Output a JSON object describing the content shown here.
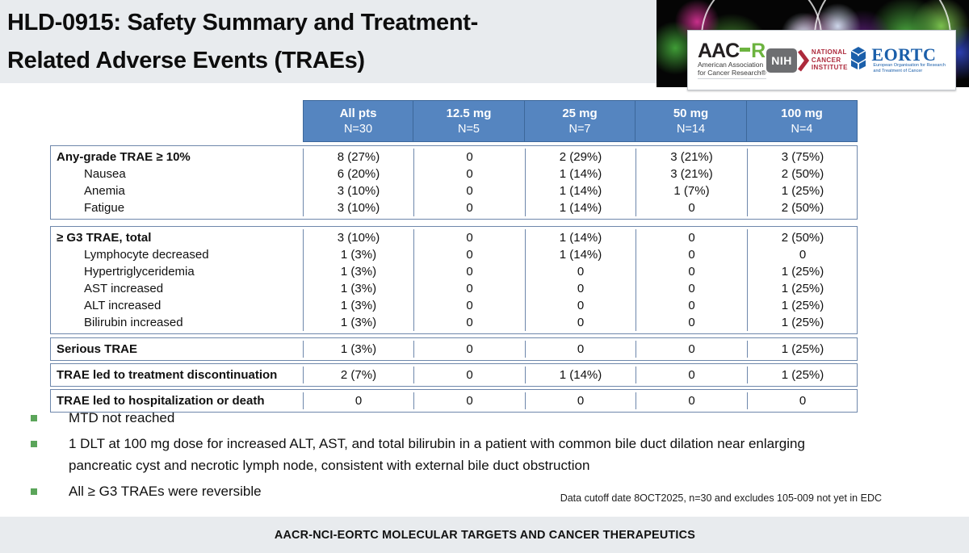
{
  "slide": {
    "title_line1": "HLD-0915: Safety Summary and Treatment-",
    "title_line2": "Related Adverse Events (TRAEs)",
    "footnote": "Data cutoff date 8OCT2025, n=30 and excludes 105-009 not yet in EDC",
    "footer_banner": "AACR-NCI-EORTC MOLECULAR TARGETS AND CANCER THERAPEUTICS"
  },
  "logos": {
    "aacr": {
      "part1": "AAC",
      "part2": "R",
      "sub1": "American Association",
      "sub2": "for Cancer Research®"
    },
    "nih": {
      "box": "NIH",
      "line1": "NATIONAL",
      "line2": "CANCER",
      "line3": "INSTITUTE"
    },
    "eortc": {
      "word": "EORTC",
      "sub1": "European Organisation for Research",
      "sub2": "and Treatment of Cancer"
    }
  },
  "table": {
    "columns": [
      {
        "label": "All pts",
        "n": "N=30"
      },
      {
        "label": "12.5 mg",
        "n": "N=5"
      },
      {
        "label": "25 mg",
        "n": "N=7"
      },
      {
        "label": "50 mg",
        "n": "N=14"
      },
      {
        "label": "100 mg",
        "n": "N=4"
      }
    ],
    "sections": [
      {
        "rows": [
          {
            "label": "Any-grade TRAE ≥ 10%",
            "bold": true,
            "values": [
              "8 (27%)",
              "0",
              "2 (29%)",
              "3 (21%)",
              "3 (75%)"
            ]
          },
          {
            "label": "Nausea",
            "indent": true,
            "values": [
              "6 (20%)",
              "0",
              "1 (14%)",
              "3 (21%)",
              "2 (50%)"
            ]
          },
          {
            "label": "Anemia",
            "indent": true,
            "values": [
              "3 (10%)",
              "0",
              "1 (14%)",
              "1 (7%)",
              "1 (25%)"
            ]
          },
          {
            "label": "Fatigue",
            "indent": true,
            "values": [
              "3 (10%)",
              "0",
              "1 (14%)",
              "0",
              "2 (50%)"
            ]
          }
        ]
      },
      {
        "rows": [
          {
            "label": "≥ G3 TRAE, total",
            "bold": true,
            "values": [
              "3 (10%)",
              "0",
              "1 (14%)",
              "0",
              "2 (50%)"
            ]
          },
          {
            "label": "Lymphocyte decreased",
            "indent": true,
            "values": [
              "1 (3%)",
              "0",
              "1 (14%)",
              "0",
              "0"
            ]
          },
          {
            "label": "Hypertriglyceridemia",
            "indent": true,
            "values": [
              "1 (3%)",
              "0",
              "0",
              "0",
              "1 (25%)"
            ]
          },
          {
            "label": "AST increased",
            "indent": true,
            "values": [
              "1 (3%)",
              "0",
              "0",
              "0",
              "1 (25%)"
            ]
          },
          {
            "label": "ALT increased",
            "indent": true,
            "values": [
              "1 (3%)",
              "0",
              "0",
              "0",
              "1 (25%)"
            ]
          },
          {
            "label": "Bilirubin increased",
            "indent": true,
            "values": [
              "1 (3%)",
              "0",
              "0",
              "0",
              "1 (25%)"
            ]
          }
        ]
      },
      {
        "rows": [
          {
            "label": "Serious TRAE",
            "bold": true,
            "values": [
              "1 (3%)",
              "0",
              "0",
              "0",
              "1 (25%)"
            ]
          }
        ]
      },
      {
        "rows": [
          {
            "label": "TRAE led to treatment discontinuation",
            "bold": true,
            "values": [
              "2 (7%)",
              "0",
              "1 (14%)",
              "0",
              "1 (25%)"
            ]
          }
        ]
      },
      {
        "rows": [
          {
            "label": "TRAE led to hospitalization or death",
            "bold": true,
            "values": [
              "0",
              "0",
              "0",
              "0",
              "0"
            ]
          }
        ]
      }
    ]
  },
  "bullets": [
    "MTD not reached",
    "1 DLT at 100 mg dose for increased ALT, AST, and total bilirubin in a patient with common bile duct dilation near enlarging pancreatic cyst and necrotic lymph node, consistent with external bile duct obstruction",
    "All ≥ G3 TRAEs were reversible"
  ],
  "colors": {
    "header_blue": "#5585c0",
    "header_border": "#3c679a",
    "table_border": "#6e87ab",
    "bullet_green": "#5ba55a",
    "strip_gray": "#e8ebee",
    "aacr_green": "#6cb33f",
    "nih_gray": "#6d6e71",
    "nci_red": "#ad2a3c",
    "eortc_blue": "#1b5faa"
  }
}
